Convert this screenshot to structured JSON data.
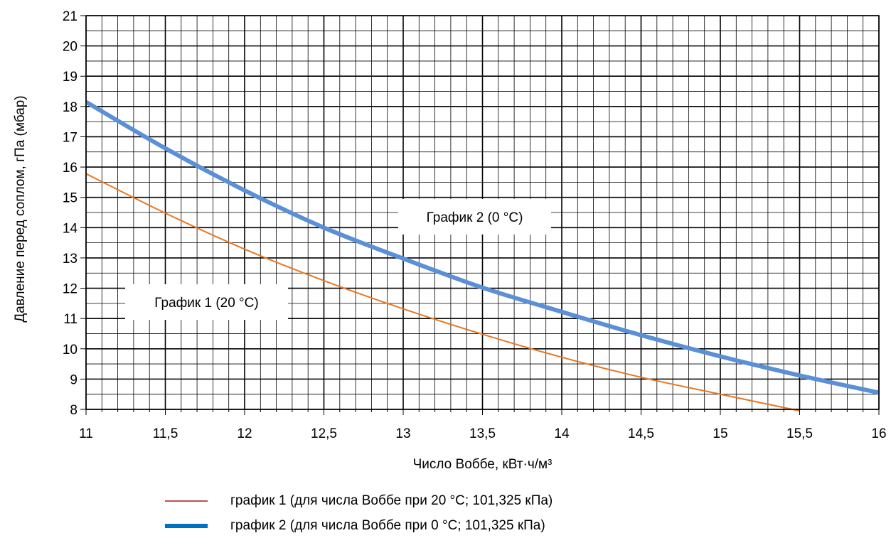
{
  "chart_data": {
    "type": "line",
    "xlabel": "Число Воббе, кВт·ч/м³",
    "ylabel": "Давление перед соплом, гПа (мбар)",
    "xlim": [
      11,
      16
    ],
    "ylim": [
      8,
      21
    ],
    "x_ticks": [
      "11",
      "11,5",
      "12",
      "12,5",
      "13",
      "13,5",
      "14",
      "14,5",
      "15",
      "15,5",
      "16"
    ],
    "y_ticks": [
      "8",
      "9",
      "10",
      "11",
      "12",
      "13",
      "14",
      "15",
      "16",
      "17",
      "18",
      "19",
      "20",
      "21"
    ],
    "grid": true,
    "series": [
      {
        "name": "график 1 (для числа Воббе при 20 °C; 101,325 кПа)",
        "color": "#e87722",
        "legend_color": "#c0504d",
        "x": [
          11,
          11.5,
          12,
          12.5,
          13,
          13.5,
          14,
          14.5,
          15,
          15.5
        ],
        "y": [
          15.78,
          14.48,
          13.29,
          12.25,
          11.32,
          10.48,
          9.72,
          9.06,
          8.5,
          7.95
        ]
      },
      {
        "name": "график 2 (для числа Воббе при 0 °C; 101,325 кПа)",
        "color": "#5b8fd6",
        "legend_color": "#0070c0",
        "x": [
          11,
          11.5,
          12,
          12.5,
          13,
          13.5,
          14,
          14.5,
          15,
          15.5,
          16
        ],
        "y": [
          18.15,
          16.62,
          15.23,
          14.0,
          12.98,
          12.02,
          11.22,
          10.45,
          9.75,
          9.12,
          8.55
        ]
      }
    ],
    "annotations": [
      {
        "text": "График 1 (20 °C)",
        "x": 11.3,
        "y": 11.6
      },
      {
        "text": "График 2 (0 °C)",
        "x": 12.9,
        "y": 14.3
      }
    ]
  }
}
